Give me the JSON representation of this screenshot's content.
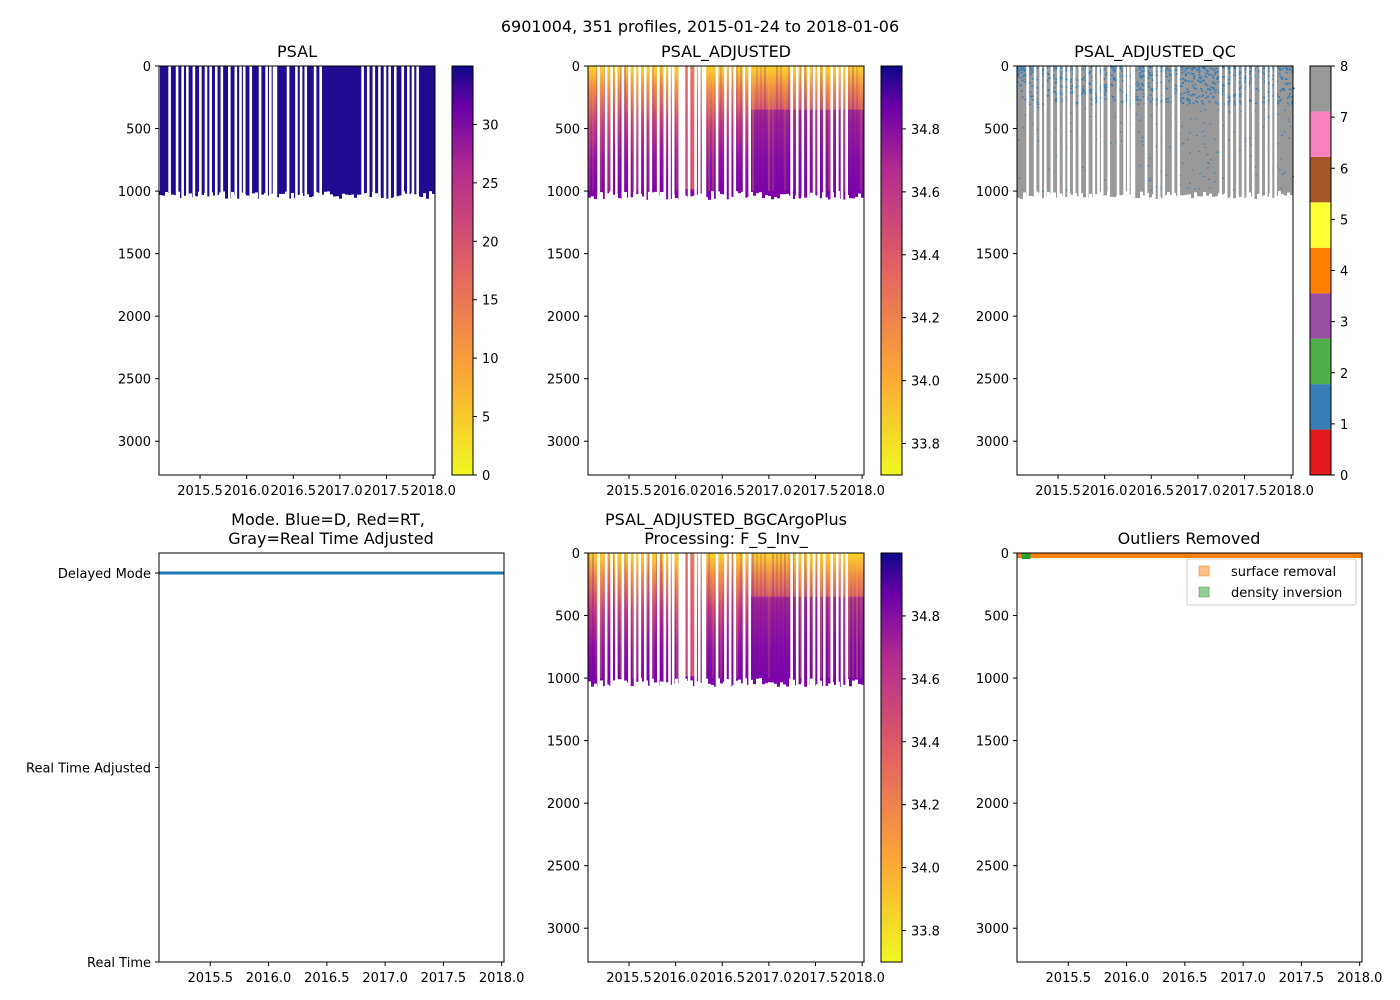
{
  "suptitle": "6901004, 351 profiles, 2015-01-24 to 2018-01-06",
  "chart_data": [
    {
      "id": "psal",
      "type": "heatmap",
      "title": "PSAL",
      "xlabel": "",
      "ylabel": "",
      "xlim": [
        2015.06,
        2018.02
      ],
      "ylim": [
        3270,
        0
      ],
      "xticks": [
        "2015.5",
        "2016.0",
        "2016.5",
        "2017.0",
        "2017.5",
        "2018.0"
      ],
      "yticks": [
        "0",
        "500",
        "1000",
        "1500",
        "2000",
        "2500",
        "3000"
      ],
      "profile_depth": 1000,
      "colormap": "plasma_r",
      "colorbar": {
        "range": [
          0,
          35
        ],
        "ticks": [
          "0",
          "5",
          "10",
          "15",
          "20",
          "25",
          "30"
        ]
      },
      "gaps": [
        2015.16,
        2015.24,
        2015.3,
        2015.35,
        2015.42,
        2015.49,
        2015.55,
        2015.6,
        2015.66,
        2015.72,
        2015.8,
        2015.87,
        2015.92,
        2015.96,
        2016.03,
        2016.13,
        2016.2,
        2016.24,
        2016.28,
        2016.3,
        2016.43,
        2016.52,
        2016.57,
        2016.62,
        2016.72,
        2016.78,
        2017.23,
        2017.29,
        2017.35,
        2017.41,
        2017.47,
        2017.52,
        2017.58,
        2017.66,
        2017.72,
        2017.77,
        2017.82
      ]
    },
    {
      "id": "psal-adjusted",
      "type": "heatmap",
      "title": "PSAL_ADJUSTED",
      "xlabel": "",
      "ylabel": "",
      "xlim": [
        2015.06,
        2018.02
      ],
      "ylim": [
        3270,
        0
      ],
      "xticks": [
        "2015.5",
        "2016.0",
        "2016.5",
        "2017.0",
        "2017.5",
        "2018.0"
      ],
      "yticks": [
        "0",
        "500",
        "1000",
        "1500",
        "2000",
        "2500",
        "3000"
      ],
      "profile_depth": 1000,
      "colormap": "plasma_r",
      "colorbar": {
        "range": [
          33.7,
          35.0
        ],
        "ticks": [
          "33.8",
          "34.0",
          "34.2",
          "34.4",
          "34.6",
          "34.8"
        ]
      }
    },
    {
      "id": "psal-adjusted-qc",
      "type": "heatmap",
      "title": "PSAL_ADJUSTED_QC",
      "xlabel": "",
      "ylabel": "",
      "xlim": [
        2015.06,
        2018.02
      ],
      "ylim": [
        3270,
        0
      ],
      "xticks": [
        "2015.5",
        "2016.0",
        "2016.5",
        "2017.0",
        "2017.5",
        "2018.0"
      ],
      "yticks": [
        "0",
        "500",
        "1000",
        "1500",
        "2000",
        "2500",
        "3000"
      ],
      "profile_depth": 1000,
      "colorbar": {
        "range": [
          0,
          8
        ],
        "ticks": [
          "0",
          "1",
          "2",
          "3",
          "4",
          "5",
          "6",
          "7",
          "8"
        ],
        "colors": [
          "#e41a1c",
          "#377eb8",
          "#4daf4a",
          "#984ea3",
          "#ff7f00",
          "#ffff33",
          "#a65628",
          "#f781bf",
          "#999999"
        ]
      }
    },
    {
      "id": "mode",
      "type": "line",
      "title": "Mode. Blue=D, Red=RT,",
      "title2": "Gray=Real Time Adjusted",
      "xlabel": "",
      "ylabel": "",
      "xlim": [
        2015.06,
        2018.02
      ],
      "xticks": [
        "2015.5",
        "2016.0",
        "2016.5",
        "2017.0",
        "2017.5",
        "2018.0"
      ],
      "yticks": [
        "Delayed Mode",
        "Real Time Adjusted",
        "Real Time"
      ],
      "series": [
        {
          "name": "Delayed Mode",
          "x": [
            2015.06,
            2018.02
          ],
          "y": [
            "Delayed Mode",
            "Delayed Mode"
          ],
          "color": "#1f77b4"
        }
      ]
    },
    {
      "id": "psal-adjusted-bgc",
      "type": "heatmap",
      "title": "PSAL_ADJUSTED_BGCArgoPlus",
      "title2": "Processing: F_S_Inv_",
      "xlabel": "",
      "ylabel": "",
      "xlim": [
        2015.06,
        2018.02
      ],
      "ylim": [
        3270,
        0
      ],
      "xticks": [
        "2015.5",
        "2016.0",
        "2016.5",
        "2017.0",
        "2017.5",
        "2018.0"
      ],
      "yticks": [
        "0",
        "500",
        "1000",
        "1500",
        "2000",
        "2500",
        "3000"
      ],
      "profile_depth": 1000,
      "colormap": "plasma_r",
      "colorbar": {
        "range": [
          33.7,
          35.0
        ],
        "ticks": [
          "33.8",
          "34.0",
          "34.2",
          "34.4",
          "34.6",
          "34.8"
        ]
      }
    },
    {
      "id": "outliers",
      "type": "scatter",
      "title": "Outliers Removed",
      "xlabel": "",
      "ylabel": "",
      "xlim": [
        2015.06,
        2018.02
      ],
      "ylim": [
        3270,
        0
      ],
      "xticks": [
        "2015.5",
        "2016.0",
        "2016.5",
        "2017.0",
        "2017.5",
        "2018.0"
      ],
      "yticks": [
        "0",
        "500",
        "1000",
        "1500",
        "2000",
        "2500",
        "3000"
      ],
      "legend_position": "top-right",
      "series": [
        {
          "name": "surface removal",
          "color": "#ff7f0e",
          "x": [
            2015.06,
            2018.02
          ],
          "y": [
            15,
            15
          ]
        },
        {
          "name": "density inversion",
          "color": "#2ca02c",
          "x": [
            2015.1,
            2015.12
          ],
          "y": [
            10,
            10
          ]
        }
      ]
    }
  ]
}
